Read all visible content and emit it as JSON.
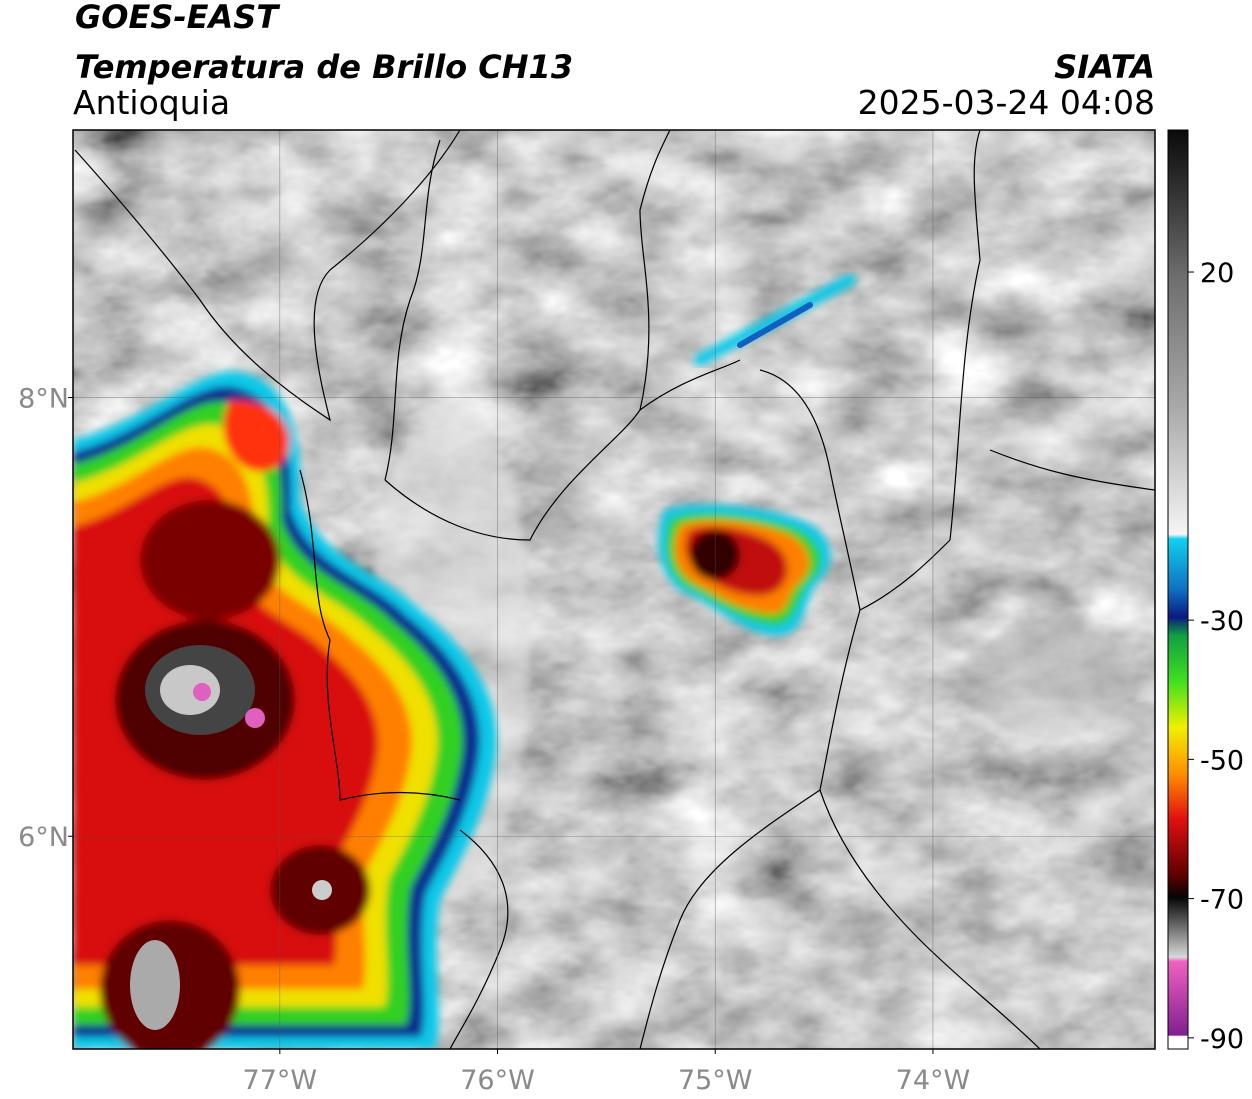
{
  "header": {
    "title": "GOES-EAST",
    "subtitle": "Temperatura de Brillo CH13",
    "region": "Antioquia",
    "source": "SIATA",
    "datetime": "2025-03-24 04:08"
  },
  "map": {
    "lon_lim": [
      -77.95,
      -72.98
    ],
    "lat_lim": [
      5.03,
      9.22
    ],
    "lat_ticks": [
      {
        "value": 8,
        "label": "8°N"
      },
      {
        "value": 6,
        "label": "6°N"
      }
    ],
    "lon_ticks": [
      {
        "value": -77,
        "label": "77°W"
      },
      {
        "value": -76,
        "label": "76°W"
      },
      {
        "value": -75,
        "label": "75°W"
      },
      {
        "value": -74,
        "label": "74°W"
      }
    ]
  },
  "colorbar": {
    "lim": [
      -91.6,
      40.4
    ],
    "ticks": [
      20,
      -30,
      -50,
      -70,
      -90
    ]
  }
}
